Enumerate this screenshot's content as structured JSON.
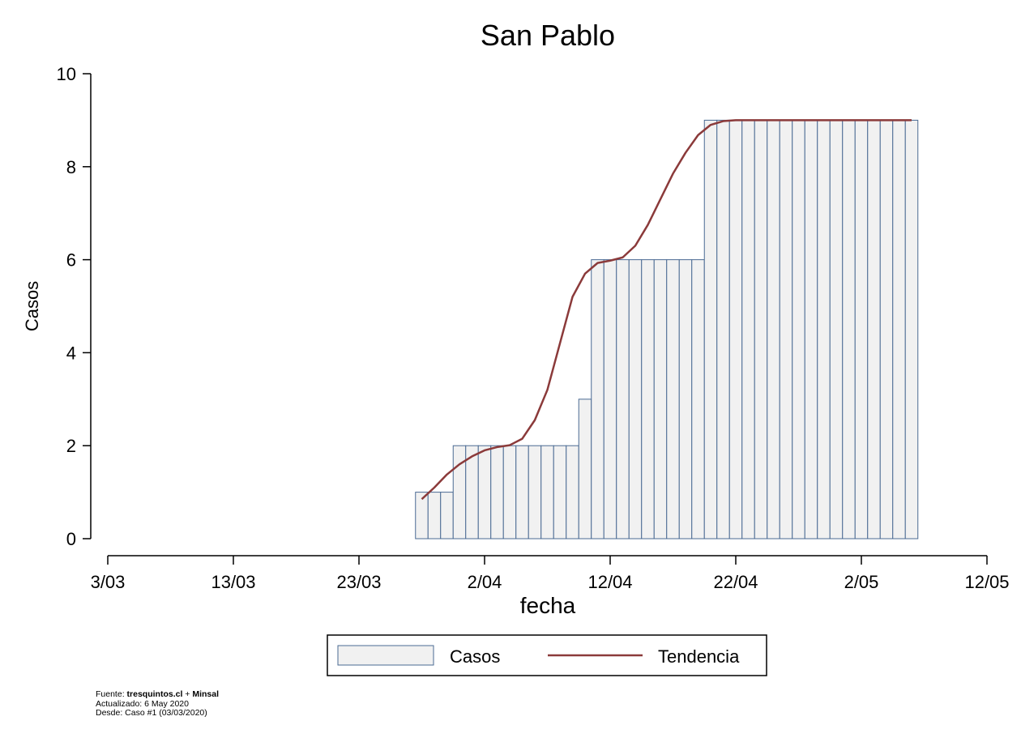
{
  "chart_data": {
    "type": "bar",
    "title": "San Pablo",
    "xlabel": "fecha",
    "ylabel": "Casos",
    "ylim": [
      0,
      10
    ],
    "yticks": [
      0,
      2,
      4,
      6,
      8,
      10
    ],
    "xlim": [
      "2020-03-03",
      "2020-05-12"
    ],
    "xticks": [
      "2020-03-03",
      "2020-03-13",
      "2020-03-23",
      "2020-04-02",
      "2020-04-12",
      "2020-04-22",
      "2020-05-02",
      "2020-05-12"
    ],
    "xtick_labels": [
      "3/03",
      "13/03",
      "23/03",
      "2/04",
      "12/04",
      "22/04",
      "2/05",
      "12/05"
    ],
    "legend": {
      "position": "bottom",
      "items": [
        "Casos",
        "Tendencia"
      ]
    },
    "colors": {
      "bar_fill": "#f1f1f1",
      "bar_edge": "#4a6a93",
      "trend": "#8b3a3a"
    },
    "series": [
      {
        "name": "Casos",
        "type": "bar",
        "x": [
          "2020-03-28",
          "2020-03-29",
          "2020-03-30",
          "2020-03-31",
          "2020-04-01",
          "2020-04-02",
          "2020-04-03",
          "2020-04-04",
          "2020-04-05",
          "2020-04-06",
          "2020-04-07",
          "2020-04-08",
          "2020-04-09",
          "2020-04-10",
          "2020-04-11",
          "2020-04-12",
          "2020-04-13",
          "2020-04-14",
          "2020-04-15",
          "2020-04-16",
          "2020-04-17",
          "2020-04-18",
          "2020-04-19",
          "2020-04-20",
          "2020-04-21",
          "2020-04-22",
          "2020-04-23",
          "2020-04-24",
          "2020-04-25",
          "2020-04-26",
          "2020-04-27",
          "2020-04-28",
          "2020-04-29",
          "2020-04-30",
          "2020-05-01",
          "2020-05-02",
          "2020-05-03",
          "2020-05-04",
          "2020-05-05",
          "2020-05-06"
        ],
        "values": [
          1,
          1,
          1,
          2,
          2,
          2,
          2,
          2,
          2,
          2,
          2,
          2,
          2,
          3,
          6,
          6,
          6,
          6,
          6,
          6,
          6,
          6,
          6,
          9,
          9,
          9,
          9,
          9,
          9,
          9,
          9,
          9,
          9,
          9,
          9,
          9,
          9,
          9,
          9,
          9
        ]
      },
      {
        "name": "Tendencia",
        "type": "line",
        "x": [
          "2020-03-28",
          "2020-03-29",
          "2020-03-30",
          "2020-03-31",
          "2020-04-01",
          "2020-04-02",
          "2020-04-03",
          "2020-04-04",
          "2020-04-05",
          "2020-04-06",
          "2020-04-07",
          "2020-04-08",
          "2020-04-09",
          "2020-04-10",
          "2020-04-11",
          "2020-04-12",
          "2020-04-13",
          "2020-04-14",
          "2020-04-15",
          "2020-04-16",
          "2020-04-17",
          "2020-04-18",
          "2020-04-19",
          "2020-04-20",
          "2020-04-21",
          "2020-04-22",
          "2020-04-23",
          "2020-04-24",
          "2020-04-25",
          "2020-04-26",
          "2020-04-27",
          "2020-04-28",
          "2020-04-29",
          "2020-04-30",
          "2020-05-01",
          "2020-05-02",
          "2020-05-03",
          "2020-05-04",
          "2020-05-05",
          "2020-05-06"
        ],
        "values": [
          0.85,
          1.1,
          1.38,
          1.6,
          1.77,
          1.9,
          1.97,
          2.01,
          2.15,
          2.55,
          3.2,
          4.2,
          5.2,
          5.7,
          5.93,
          5.98,
          6.05,
          6.3,
          6.75,
          7.3,
          7.85,
          8.3,
          8.68,
          8.9,
          8.98,
          9,
          9,
          9,
          9,
          9,
          9,
          9,
          9,
          9,
          9,
          9,
          9,
          9,
          9,
          9
        ]
      }
    ]
  },
  "footer": {
    "source_label": "Fuente: ",
    "source_a": "tresquintos.cl",
    "source_plus": " + ",
    "source_b": "Minsal",
    "updated": "Actualizado: 6 May 2020",
    "since": "Desde: Caso #1   (03/03/2020)"
  }
}
